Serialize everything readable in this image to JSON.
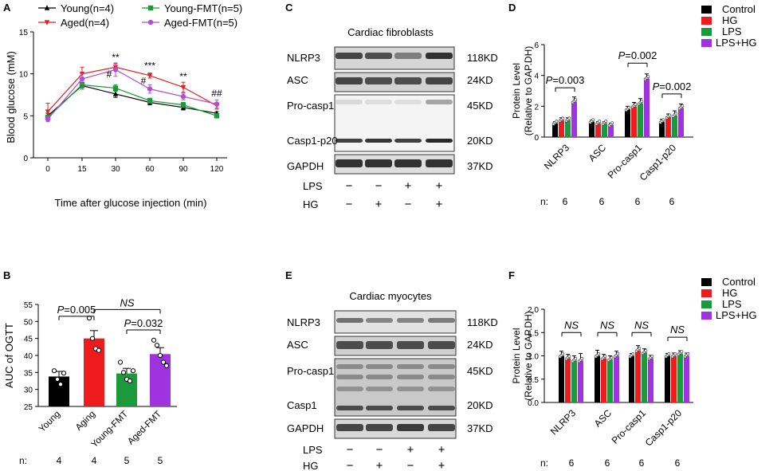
{
  "panels": {
    "A": {
      "letter": "A"
    },
    "B": {
      "letter": "B"
    },
    "C": {
      "letter": "C",
      "title": "Cardiac fibroblasts",
      "bands": [
        "NLRP3",
        "ASC",
        "Pro-casp1",
        "Casp1-p20",
        "GAPDH"
      ],
      "kd": [
        "118KD",
        "24KD",
        "45KD",
        "20KD",
        "37KD"
      ],
      "lps_label": "LPS",
      "hg_label": "HG",
      "lps": [
        "−",
        "−",
        "+",
        "+"
      ],
      "hg": [
        "−",
        "+",
        "−",
        "+"
      ]
    },
    "D": {
      "letter": "D"
    },
    "E": {
      "letter": "E",
      "title": "Cardiac myocytes",
      "bands": [
        "NLRP3",
        "ASC",
        "Pro-casp1",
        "Casp1",
        "GAPDH"
      ],
      "kd": [
        "118KD",
        "24KD",
        "45KD",
        "20KD",
        "37KD"
      ],
      "lps_label": "LPS",
      "hg_label": "HG",
      "lps": [
        "−",
        "−",
        "+",
        "+"
      ],
      "hg": [
        "−",
        "+",
        "−",
        "+"
      ]
    },
    "F": {
      "letter": "F"
    }
  },
  "chart_data": [
    {
      "id": "A",
      "type": "line",
      "title": "",
      "xlabel": "Time after glucose injection (min)",
      "ylabel": "Blood glucose (mM)",
      "x": [
        0,
        15,
        30,
        60,
        90,
        120
      ],
      "xticks": [
        "0",
        "15",
        "30",
        "60",
        "90",
        "120"
      ],
      "ylim": [
        0,
        15
      ],
      "yticks": [
        "0",
        "5",
        "10",
        "15"
      ],
      "series": [
        {
          "name": "Young(n=4)",
          "color": "#000000",
          "marker": "triangle-up",
          "values": [
            5.0,
            8.6,
            7.6,
            6.6,
            6.0,
            5.3
          ],
          "errors": [
            0.3,
            0.4,
            0.4,
            0.3,
            0.3,
            0.2
          ]
        },
        {
          "name": "Aged(n=4)",
          "color": "#ee1c1c",
          "marker": "triangle-down",
          "values": [
            5.5,
            10.0,
            10.8,
            9.8,
            8.4,
            6.2
          ],
          "errors": [
            1.0,
            0.8,
            0.4,
            0.3,
            0.6,
            0.4
          ]
        },
        {
          "name": "Young-FMT(n=5)",
          "color": "#1a9a3a",
          "marker": "square",
          "values": [
            4.8,
            8.7,
            8.3,
            6.8,
            6.3,
            5.0
          ],
          "errors": [
            0.3,
            0.5,
            0.4,
            0.3,
            0.3,
            0.2
          ]
        },
        {
          "name": "Aged-FMT(n=5)",
          "color": "#b14fd6",
          "marker": "circle",
          "values": [
            4.6,
            9.4,
            10.5,
            8.2,
            7.3,
            6.4
          ],
          "errors": [
            0.3,
            0.6,
            0.8,
            0.5,
            0.4,
            0.5
          ]
        }
      ],
      "annotations": [
        {
          "x": 30,
          "text": "**",
          "y": 11.6
        },
        {
          "x": 30,
          "text": "#",
          "y": 9.6,
          "dx": -1
        },
        {
          "x": 60,
          "text": "***",
          "y": 10.6
        },
        {
          "x": 60,
          "text": "#",
          "y": 8.8,
          "dx": -1
        },
        {
          "x": 90,
          "text": "**",
          "y": 9.3
        },
        {
          "x": 120,
          "text": "##",
          "y": 7.3
        }
      ]
    },
    {
      "id": "B",
      "type": "bar",
      "title": "",
      "xlabel": "",
      "ylabel": "AUC of OGTT",
      "categories": [
        "Young",
        "Aging",
        "Young-FMT",
        "Aged-FMT"
      ],
      "values": [
        33.8,
        45.0,
        34.7,
        40.4
      ],
      "errors": [
        1.5,
        2.3,
        1.5,
        1.9
      ],
      "points": [
        [
          35.5,
          33.0,
          31.5,
          34.8
        ],
        [
          51.0,
          45.0,
          42.0,
          41.5
        ],
        [
          38.0,
          35.0,
          33.0,
          32.5,
          35.5
        ],
        [
          44.5,
          43.0,
          40.0,
          38.0,
          37.0
        ]
      ],
      "colors": [
        "#000000",
        "#ee1c1c",
        "#1a9a3a",
        "#a033e0"
      ],
      "ylim": [
        25,
        55
      ],
      "yticks": [
        "25",
        "30",
        "35",
        "40",
        "45",
        "50",
        "55"
      ],
      "n_label": "n:",
      "n": [
        "4",
        "4",
        "5",
        "5"
      ],
      "brackets": [
        {
          "from": 0,
          "to": 1,
          "prefix": "P",
          "text": "=0.005",
          "y": 51.5
        },
        {
          "from": 1,
          "to": 3,
          "prefix": "NS",
          "text": "",
          "y": 53.5
        },
        {
          "from": 2,
          "to": 3,
          "prefix": "P",
          "text": "=0.032",
          "y": 47.5
        }
      ]
    },
    {
      "id": "D",
      "type": "bar",
      "title": "",
      "xlabel": "",
      "ylabel": "Protein Level",
      "ylabel2": "(Relative to GAP.DH)",
      "categories": [
        "NLRP3",
        "ASC",
        "Pro-casp1",
        "Casp1-p20"
      ],
      "ylim": [
        0,
        6
      ],
      "yticks": [
        "0",
        "2",
        "4",
        "6"
      ],
      "series": [
        {
          "name": "Control",
          "color": "#000000",
          "values": [
            0.9,
            1.0,
            1.8,
            1.0
          ],
          "errors": [
            0.1,
            0.1,
            0.2,
            0.15
          ]
        },
        {
          "name": "HG",
          "color": "#ee1c1c",
          "values": [
            1.1,
            0.9,
            2.0,
            1.3
          ],
          "errors": [
            0.15,
            0.1,
            0.25,
            0.2
          ]
        },
        {
          "name": "LPS",
          "color": "#1a9a3a",
          "values": [
            1.1,
            0.9,
            2.2,
            1.4
          ],
          "errors": [
            0.15,
            0.1,
            0.3,
            0.3
          ]
        },
        {
          "name": "LPS+HG",
          "color": "#a033e0",
          "values": [
            2.3,
            0.8,
            3.8,
            1.9
          ],
          "errors": [
            0.3,
            0.1,
            0.3,
            0.25
          ]
        }
      ],
      "n_label": "n:",
      "n": [
        "6",
        "6",
        "6",
        "6"
      ],
      "brackets": [
        {
          "group": 0,
          "prefix": "P",
          "text": "=0.003",
          "y": 3.2
        },
        {
          "group": 2,
          "prefix": "P",
          "text": "=0.002",
          "y": 4.8
        },
        {
          "group": 3,
          "prefix": "P",
          "text": "=0.002",
          "y": 2.8
        }
      ]
    },
    {
      "id": "F",
      "type": "bar",
      "title": "",
      "xlabel": "",
      "ylabel": "Protein Level",
      "ylabel2": "(Relative to GAP.DH)",
      "categories": [
        "NLRP3",
        "ASC",
        "Pro-casp1",
        "Casp1-p20"
      ],
      "ylim": [
        0,
        2.0
      ],
      "yticks": [
        "0.0",
        "0.5",
        "1.0",
        "1.5",
        "2.0"
      ],
      "series": [
        {
          "name": "Control",
          "color": "#000000",
          "values": [
            1.0,
            1.0,
            1.0,
            1.0
          ],
          "errors": [
            0.1,
            0.12,
            0.05,
            0.05
          ]
        },
        {
          "name": "HG",
          "color": "#ee1c1c",
          "values": [
            0.95,
            0.95,
            1.12,
            1.0
          ],
          "errors": [
            0.08,
            0.08,
            0.1,
            0.06
          ]
        },
        {
          "name": "LPS",
          "color": "#1a9a3a",
          "values": [
            0.9,
            0.92,
            1.07,
            1.05
          ],
          "errors": [
            0.1,
            0.08,
            0.08,
            0.06
          ]
        },
        {
          "name": "LPS+HG",
          "color": "#a033e0",
          "values": [
            0.9,
            1.0,
            0.95,
            1.0
          ],
          "errors": [
            0.15,
            0.1,
            0.06,
            0.06
          ]
        }
      ],
      "n_label": "n:",
      "n": [
        "6",
        "6",
        "6",
        "6"
      ],
      "brackets": [
        {
          "group": 0,
          "prefix": "NS",
          "text": "",
          "y": 1.5
        },
        {
          "group": 1,
          "prefix": "NS",
          "text": "",
          "y": 1.5
        },
        {
          "group": 2,
          "prefix": "NS",
          "text": "",
          "y": 1.5
        },
        {
          "group": 3,
          "prefix": "NS",
          "text": "",
          "y": 1.4
        }
      ]
    }
  ]
}
